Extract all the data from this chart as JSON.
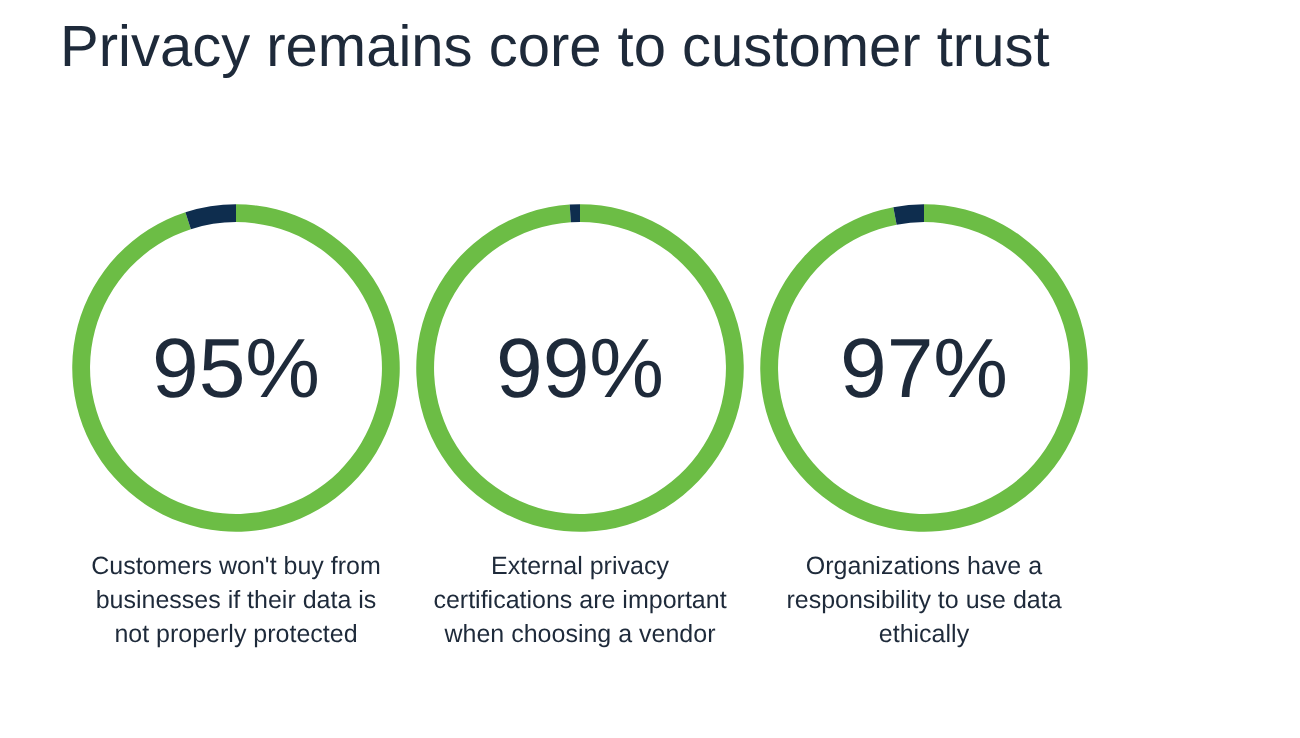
{
  "chart_data": [
    {
      "type": "donut",
      "title": "Privacy remains core to customer trust",
      "categories": [
        null,
        null
      ],
      "values": [
        95,
        5
      ],
      "colors": [
        "#6cbd45",
        "#0e2d4e"
      ],
      "value_labels": [
        "95%",
        null
      ],
      "annotations": [
        "Customers won't buy from businesses if their data is not properly protected"
      ]
    },
    {
      "type": "donut",
      "categories": [
        null,
        null
      ],
      "values": [
        99,
        1
      ],
      "colors": [
        "#6cbd45",
        "#0e2d4e"
      ],
      "value_labels": [
        "99%",
        null
      ],
      "annotations": [
        "External privacy certifications are important when choosing a vendor"
      ]
    },
    {
      "type": "donut",
      "categories": [
        null,
        null
      ],
      "values": [
        97,
        3
      ],
      "colors": [
        "#6cbd45",
        "#0e2d4e"
      ],
      "value_labels": [
        "97%",
        null
      ],
      "annotations": [
        "Organizations have a responsibility to use data ethically"
      ]
    }
  ]
}
